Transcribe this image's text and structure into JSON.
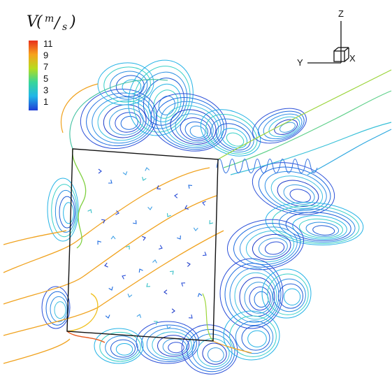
{
  "legend": {
    "variable": "V",
    "unit_numerator": "m",
    "unit_denominator": "s",
    "ticks": [
      "11",
      "9",
      "7",
      "5",
      "3",
      "1"
    ],
    "colors": [
      "#e8301c",
      "#f7a21c",
      "#b6dc1e",
      "#37d69a",
      "#21b6e8",
      "#1f3fd6"
    ]
  },
  "triad": {
    "z": "Z",
    "y": "Y",
    "x": "X"
  }
}
